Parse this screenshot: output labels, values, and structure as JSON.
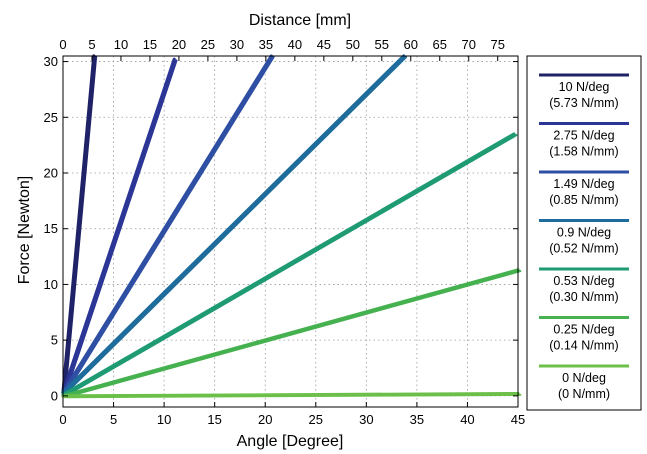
{
  "chart_data": {
    "type": "line",
    "xlabel": "Angle [Degree]",
    "x2label": "Distance [mm]",
    "ylabel": "Force [Newton]",
    "xlim": [
      0,
      45
    ],
    "x2lim": [
      0,
      78.5
    ],
    "ylim": [
      -1,
      30.5
    ],
    "xticks": [
      "0",
      "5",
      "10",
      "15",
      "20",
      "25",
      "30",
      "35",
      "40",
      "45"
    ],
    "x2ticks": [
      "0",
      "5",
      "10",
      "15",
      "20",
      "25",
      "30",
      "35",
      "40",
      "45",
      "50",
      "55",
      "60",
      "65",
      "70",
      "75"
    ],
    "yticks": [
      "0",
      "5",
      "10",
      "15",
      "20",
      "25",
      "30"
    ],
    "grid": true,
    "legend_position": "right, outside plot",
    "series": [
      {
        "name": "10 N/deg",
        "name2": "(5.73 N/mm)",
        "color": "#1f2266",
        "x": [
          0,
          3.05
        ],
        "y": [
          0.3,
          30.5
        ]
      },
      {
        "name": "2.75 N/deg",
        "name2": "(1.58 N/mm)",
        "color": "#2b3595",
        "x": [
          0,
          11.0
        ],
        "y": [
          0.3,
          30.2
        ]
      },
      {
        "name": "1.49 N/deg",
        "name2": "(0.85 N/mm)",
        "color": "#2d4ea3",
        "x": [
          0,
          20.6
        ],
        "y": [
          0.3,
          30.5
        ]
      },
      {
        "name": "0.9 N/deg",
        "name2": "(0.52 N/mm)",
        "color": "#1e6c9c",
        "x": [
          0,
          33.7
        ],
        "y": [
          0.3,
          30.5
        ]
      },
      {
        "name": "0.53 N/deg",
        "name2": "(0.30 N/mm)",
        "color": "#1f9b74",
        "x": [
          0,
          44.6
        ],
        "y": [
          0.1,
          23.5
        ]
      },
      {
        "name": "0.25 N/deg",
        "name2": "(0.14 N/mm)",
        "color": "#45b14f",
        "x": [
          0,
          45
        ],
        "y": [
          0.0,
          11.3
        ]
      },
      {
        "name": "0 N/deg",
        "name2": "(0 N/mm)",
        "color": "#6cc04a",
        "x": [
          0,
          45
        ],
        "y": [
          0.0,
          0.2
        ]
      }
    ]
  }
}
